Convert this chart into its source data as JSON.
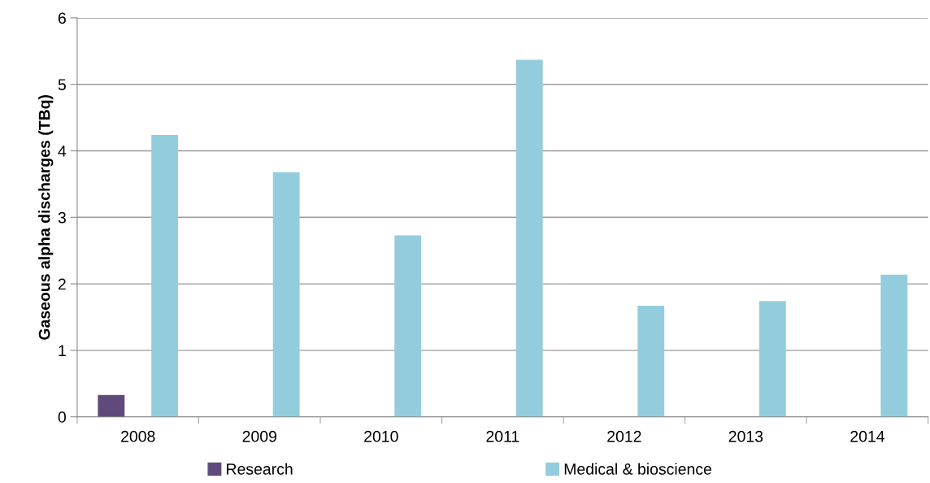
{
  "chart_data": {
    "type": "bar",
    "ylabel": "Gaseous alpha discharges (TBq)",
    "categories": [
      "2008",
      "2009",
      "2010",
      "2011",
      "2012",
      "2013",
      "2014"
    ],
    "series": [
      {
        "name": "Research",
        "color": "#604a7b",
        "values": [
          0.33,
          null,
          null,
          null,
          null,
          null,
          null
        ]
      },
      {
        "name": "Medical & bioscience",
        "color": "#93cddd",
        "values": [
          4.24,
          3.68,
          2.73,
          5.37,
          1.67,
          1.74,
          2.14
        ]
      }
    ],
    "ylim": [
      0,
      6
    ],
    "yticks": [
      0,
      1,
      2,
      3,
      4,
      5,
      6
    ],
    "grid": "y",
    "legend": "bottom"
  }
}
